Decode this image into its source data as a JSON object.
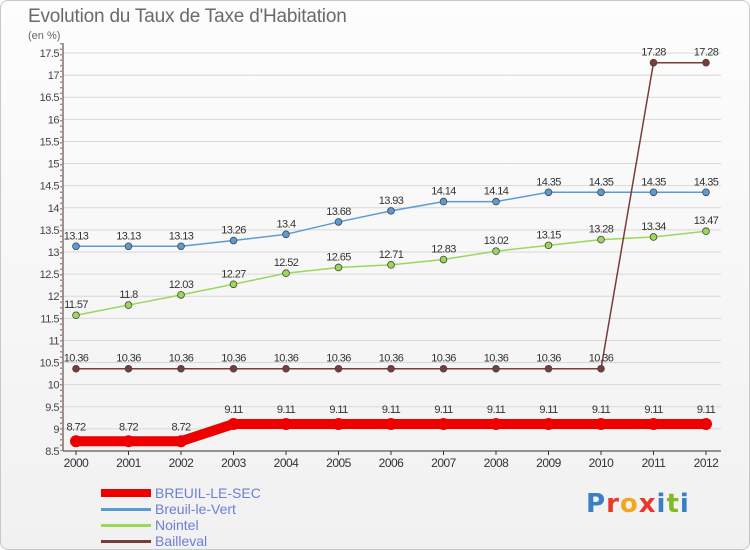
{
  "title": "Evolution du Taux de Taxe d'Habitation",
  "unit": "(en %)",
  "logo": {
    "text": "Proxiti",
    "letters": [
      "P",
      "r",
      "o",
      "x",
      "i",
      "t",
      "i"
    ],
    "colors": [
      "#3a7fc4",
      "#e8392d",
      "#f2a81d",
      "#e8392d",
      "#3a7fc4",
      "#7fba27",
      "#3a7fc4"
    ]
  },
  "chart_data": {
    "type": "line",
    "title": "Evolution du Taux de Taxe d'Habitation",
    "ylabel": "(en %)",
    "xlabel": "",
    "x": [
      "2000",
      "2001",
      "2002",
      "2003",
      "2004",
      "2005",
      "2006",
      "2007",
      "2008",
      "2009",
      "2010",
      "2011",
      "2012"
    ],
    "ylim": [
      8.5,
      17.5
    ],
    "yticks": [
      "8.5",
      "9",
      "9.5",
      "10",
      "10.5",
      "11",
      "11.5",
      "12",
      "12.5",
      "13",
      "13.5",
      "14",
      "14.5",
      "15",
      "15.5",
      "16",
      "16.5",
      "17",
      "17.5"
    ],
    "grid": true,
    "legend": "bottom-left",
    "series": [
      {
        "name": "BREUIL-LE-SEC",
        "color": "#ee0000",
        "values": [
          8.72,
          8.72,
          8.72,
          9.11,
          9.11,
          9.11,
          9.11,
          9.11,
          9.11,
          9.11,
          9.11,
          9.11,
          9.11
        ],
        "labels": [
          "8.72",
          "8.72",
          "8.72",
          "9.11",
          "9.11",
          "9.11",
          "9.11",
          "9.11",
          "9.11",
          "9.11",
          "9.11",
          "9.11",
          "9.11"
        ]
      },
      {
        "name": "Breuil-le-Vert",
        "color": "#5b9bd5",
        "values": [
          13.13,
          13.13,
          13.13,
          13.26,
          13.4,
          13.68,
          13.93,
          14.14,
          14.14,
          14.35,
          14.35,
          14.35,
          14.35
        ],
        "labels": [
          "13.13",
          "13.13",
          "13.13",
          "13.26",
          "13.4",
          "13.68",
          "13.93",
          "14.14",
          "14.14",
          "14.35",
          "14.35",
          "14.35",
          "14.35"
        ]
      },
      {
        "name": "Nointel",
        "color": "#9ad85a",
        "values": [
          11.57,
          11.8,
          12.03,
          12.27,
          12.52,
          12.65,
          12.71,
          12.83,
          13.02,
          13.15,
          13.28,
          13.34,
          13.47
        ],
        "labels": [
          "11.57",
          "11.8",
          "12.03",
          "12.27",
          "12.52",
          "12.65",
          "12.71",
          "12.83",
          "13.02",
          "13.15",
          "13.28",
          "13.34",
          "13.47"
        ]
      },
      {
        "name": "Bailleval",
        "color": "#7a3b3b",
        "values": [
          10.36,
          10.36,
          10.36,
          10.36,
          10.36,
          10.36,
          10.36,
          10.36,
          10.36,
          10.36,
          10.36,
          17.28,
          17.28
        ],
        "labels": [
          "10.36",
          "10.36",
          "10.36",
          "10.36",
          "10.36",
          "10.36",
          "10.36",
          "10.36",
          "10.36",
          "10.36",
          "10.36",
          "17.28",
          "17.28"
        ]
      }
    ]
  }
}
